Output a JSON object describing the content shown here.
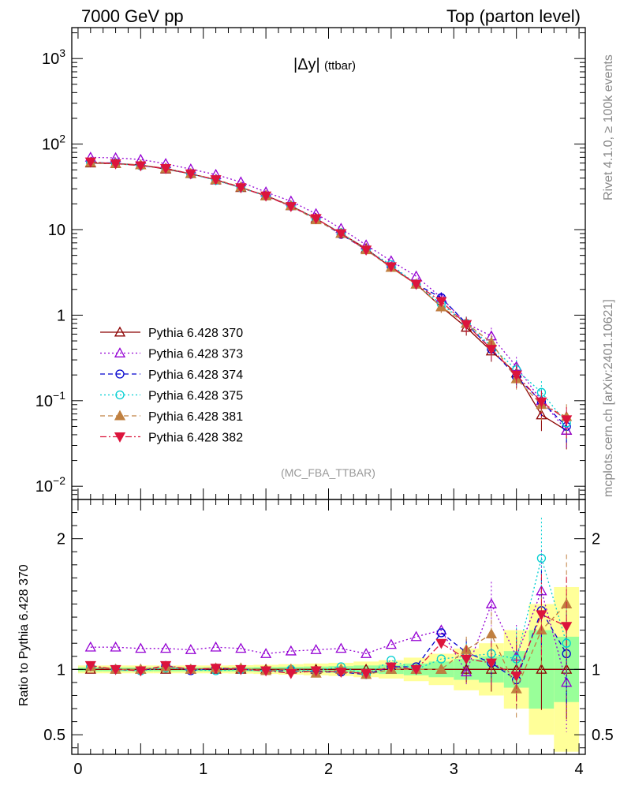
{
  "header": {
    "left": "7000 GeV pp",
    "right": "Top (parton level)"
  },
  "side": {
    "rivet": "Rivet 4.1.0, ≥ 100k events",
    "mcplots": "mcplots.cern.ch [arXiv:2401.10621]"
  },
  "chart_data": [
    {
      "type": "line",
      "title": "|Δy| (ttbar)",
      "title_main": "|Δy|",
      "title_sub": "(ttbar)",
      "watermark": "(MC_FBA_TTBAR)",
      "xlim": [
        -0.05,
        4.05
      ],
      "ylim": [
        0.007,
        2300
      ],
      "yscale": "log",
      "ytick_labels": [
        {
          "value": 0.01,
          "base": "10",
          "exp": "−2",
          "text": ""
        },
        {
          "value": 0.1,
          "base": "10",
          "exp": "−1",
          "text": ""
        },
        {
          "value": 1,
          "base": "",
          "exp": "",
          "text": "1"
        },
        {
          "value": 10,
          "base": "",
          "exp": "",
          "text": "10"
        },
        {
          "value": 100,
          "base": "10",
          "exp": "2",
          "text": ""
        },
        {
          "value": 1000,
          "base": "10",
          "exp": "3",
          "text": ""
        }
      ],
      "x": [
        0.1,
        0.3,
        0.5,
        0.7,
        0.9,
        1.1,
        1.3,
        1.5,
        1.7,
        1.9,
        2.1,
        2.3,
        2.5,
        2.7,
        2.9,
        3.1,
        3.3,
        3.5,
        3.7,
        3.9
      ],
      "series": [
        {
          "name": "Pythia 6.428 370",
          "color": "#8b0000",
          "dash": "",
          "marker": "tri-up-open",
          "values": [
            60,
            59,
            57,
            51,
            45,
            38,
            31,
            25,
            19,
            13.5,
            9,
            6,
            3.6,
            2.3,
            1.25,
            0.72,
            0.38,
            0.21,
            0.068,
            0.045
          ]
        },
        {
          "name": "Pythia 6.428 373",
          "color": "#9400d3",
          "dash": "2,3",
          "marker": "tri-up-open",
          "values": [
            70,
            69,
            66,
            59,
            51,
            44,
            36,
            27.5,
            21.5,
            15.3,
            10.3,
            6.6,
            4.3,
            2.85,
            1.6,
            0.8,
            0.57,
            0.25,
            0.1,
            0.045
          ]
        },
        {
          "name": "Pythia 6.428 374",
          "color": "#0000cd",
          "dash": "6,4",
          "marker": "circle-open",
          "values": [
            61,
            60,
            56,
            52,
            44.5,
            38.5,
            31,
            24.8,
            18.8,
            13.2,
            8.8,
            5.8,
            3.7,
            2.3,
            1.6,
            0.8,
            0.4,
            0.19,
            0.098,
            0.05
          ]
        },
        {
          "name": "Pythia 6.428 375",
          "color": "#00ced1",
          "dash": "2,3",
          "marker": "circle-open",
          "values": [
            61,
            59,
            56,
            52,
            45,
            37.6,
            31,
            24.6,
            19,
            13.3,
            9.2,
            5.8,
            3.9,
            2.3,
            1.35,
            0.8,
            0.43,
            0.23,
            0.125,
            0.055
          ]
        },
        {
          "name": "Pythia 6.428 381",
          "color": "#c08040",
          "dash": "6,4",
          "marker": "tri-up-filled",
          "values": [
            61,
            59,
            57,
            52,
            45,
            38.5,
            31.5,
            24.7,
            19,
            13,
            9,
            5.8,
            3.6,
            2.3,
            1.25,
            0.8,
            0.48,
            0.18,
            0.09,
            0.065
          ]
        },
        {
          "name": "Pythia 6.428 382",
          "color": "#dc143c",
          "dash": "8,3,2,3",
          "marker": "tri-down-filled",
          "values": [
            62,
            59,
            56,
            52,
            45,
            38.5,
            31,
            24.8,
            18.7,
            13.5,
            9,
            5.8,
            3.7,
            2.3,
            1.45,
            0.78,
            0.4,
            0.2,
            0.097,
            0.06
          ]
        }
      ]
    },
    {
      "type": "line",
      "ylabel": "Ratio to Pythia 6.428 370",
      "xlim": [
        -0.05,
        4.05
      ],
      "ylim": [
        0.35,
        2.3
      ],
      "ytick_labels": [
        {
          "value": 0.5,
          "text": "0.5"
        },
        {
          "value": 1,
          "text": "1"
        },
        {
          "value": 2,
          "text": "2"
        }
      ],
      "xtick_labels": [
        {
          "value": 0,
          "text": "0"
        },
        {
          "value": 1,
          "text": "1"
        },
        {
          "value": 2,
          "text": "2"
        },
        {
          "value": 3,
          "text": "3"
        },
        {
          "value": 4,
          "text": "4"
        }
      ],
      "x": [
        0.1,
        0.3,
        0.5,
        0.7,
        0.9,
        1.1,
        1.3,
        1.5,
        1.7,
        1.9,
        2.1,
        2.3,
        2.5,
        2.7,
        2.9,
        3.1,
        3.3,
        3.5,
        3.7,
        3.9
      ],
      "bands": {
        "green_half_width": [
          0.015,
          0.015,
          0.015,
          0.015,
          0.015,
          0.015,
          0.016,
          0.018,
          0.02,
          0.022,
          0.025,
          0.03,
          0.035,
          0.045,
          0.06,
          0.08,
          0.1,
          0.14,
          0.3,
          0.25
        ],
        "yellow_half_width": [
          0.03,
          0.03,
          0.03,
          0.03,
          0.03,
          0.03,
          0.032,
          0.035,
          0.04,
          0.045,
          0.05,
          0.06,
          0.07,
          0.09,
          0.12,
          0.16,
          0.2,
          0.3,
          0.5,
          0.63
        ]
      },
      "series": [
        {
          "name": "Pythia 6.428 370",
          "values": [
            1,
            1,
            1,
            1,
            1,
            1,
            1,
            1,
            1,
            1,
            1,
            1,
            1,
            1,
            1,
            1,
            1,
            1,
            1,
            1
          ]
        },
        {
          "name": "Pythia 6.428 373",
          "values": [
            1.17,
            1.17,
            1.16,
            1.16,
            1.15,
            1.17,
            1.16,
            1.12,
            1.14,
            1.15,
            1.16,
            1.12,
            1.19,
            1.25,
            1.3,
            0.98,
            1.5,
            1.1,
            1.6,
            0.9
          ]
        },
        {
          "name": "Pythia 6.428 374",
          "values": [
            1.02,
            1.0,
            0.99,
            1.03,
            0.99,
            1.01,
            1.0,
            0.99,
            0.99,
            0.98,
            0.98,
            0.96,
            1.02,
            1.02,
            1.28,
            1.13,
            1.05,
            0.92,
            1.45,
            1.12
          ]
        },
        {
          "name": "Pythia 6.428 375",
          "values": [
            1.02,
            1.0,
            0.99,
            1.01,
            1.0,
            0.99,
            1.0,
            0.99,
            1.0,
            0.99,
            1.02,
            0.96,
            1.07,
            1.0,
            1.08,
            1.1,
            1.12,
            1.08,
            1.85,
            1.2
          ]
        },
        {
          "name": "Pythia 6.428 381",
          "values": [
            1.02,
            1.0,
            1.0,
            1.02,
            1.0,
            1.01,
            1.01,
            0.99,
            1.0,
            0.97,
            1.0,
            0.96,
            1.0,
            1.0,
            1.0,
            1.15,
            1.27,
            0.85,
            1.3,
            1.5
          ]
        },
        {
          "name": "Pythia 6.428 382",
          "values": [
            1.03,
            1.0,
            0.99,
            1.03,
            1.0,
            1.01,
            1.0,
            0.99,
            0.97,
            0.99,
            0.98,
            0.97,
            1.02,
            1.0,
            1.2,
            1.08,
            1.05,
            0.95,
            1.42,
            1.33
          ]
        }
      ]
    }
  ]
}
